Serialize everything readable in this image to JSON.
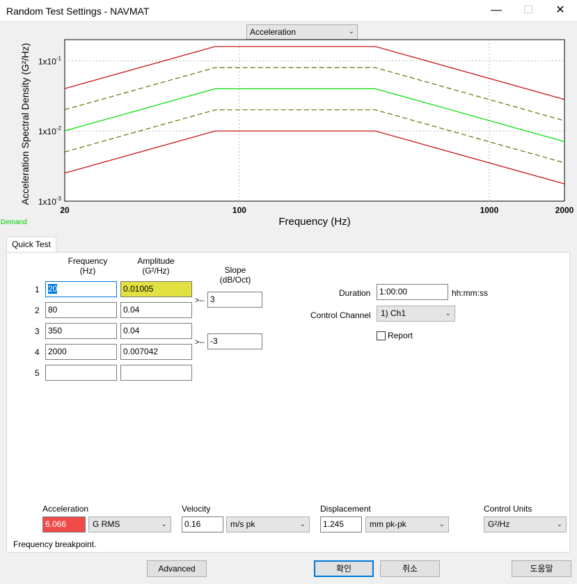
{
  "window": {
    "title": "Random Test Settings - NAVMAT",
    "controls": [
      "minimize",
      "maximize",
      "close"
    ]
  },
  "chart": {
    "view_select": "Acceleration",
    "demand_label": "Demand"
  },
  "chart_data": {
    "type": "line",
    "xlabel": "Frequency (Hz)",
    "ylabel": "Acceleration Spectral Density (G²/Hz)",
    "xscale": "log",
    "yscale": "log",
    "xlim": [
      20,
      2000
    ],
    "ylim": [
      0.001,
      0.2
    ],
    "xticks": [
      20,
      100,
      1000,
      2000
    ],
    "xtick_labels": [
      "20",
      "100",
      "1000",
      "2000"
    ],
    "yticks": [
      0.001,
      0.01,
      0.1
    ],
    "ytick_labels": [
      [
        "1x10",
        "-3"
      ],
      [
        "1x10",
        "-2"
      ],
      [
        "1x10",
        "-1"
      ]
    ],
    "grid": true,
    "series": [
      {
        "style": "solid",
        "color": "#c00000",
        "x": [
          20,
          80,
          350,
          2000
        ],
        "y": [
          0.0402,
          0.16,
          0.16,
          0.0281
        ]
      },
      {
        "style": "dashed",
        "color": "#6b6b00",
        "x": [
          20,
          80,
          350,
          2000
        ],
        "y": [
          0.0201,
          0.08,
          0.08,
          0.014
        ]
      },
      {
        "style": "solid",
        "color": "#00dd00",
        "x": [
          20,
          80,
          350,
          2000
        ],
        "y": [
          0.01005,
          0.04,
          0.04,
          0.007042
        ]
      },
      {
        "style": "dashed",
        "color": "#6b6b00",
        "x": [
          20,
          80,
          350,
          2000
        ],
        "y": [
          0.00503,
          0.02,
          0.02,
          0.00352
        ]
      },
      {
        "style": "solid",
        "color": "#c00000",
        "x": [
          20,
          80,
          350,
          2000
        ],
        "y": [
          0.00251,
          0.01,
          0.01,
          0.00176
        ]
      }
    ]
  },
  "tabs": [
    "Quick Test"
  ],
  "table": {
    "header_freq": [
      "Frequency",
      "(Hz)"
    ],
    "header_amp": [
      "Amplitude",
      "(G²/Hz)"
    ],
    "header_slope": [
      "Slope",
      "(dB/Oct)"
    ],
    "rows": [
      {
        "num": "1",
        "freq": "20",
        "amp": "0.01005"
      },
      {
        "num": "2",
        "freq": "80",
        "amp": "0.04"
      },
      {
        "num": "3",
        "freq": "350",
        "amp": "0.04"
      },
      {
        "num": "4",
        "freq": "2000",
        "amp": "0.007042"
      },
      {
        "num": "5",
        "freq": "",
        "amp": ""
      }
    ],
    "slopes": [
      {
        "arrow": ">--",
        "value": "3"
      },
      {
        "arrow": ">--",
        "value": "-3"
      }
    ]
  },
  "settings": {
    "duration_label": "Duration",
    "duration_value": "1:00:00",
    "duration_unit": "hh:mm:ss",
    "control_channel_label": "Control Channel",
    "control_channel_value": "1) Ch1",
    "report_label": "Report",
    "report_checked": false
  },
  "bottom": {
    "acceleration_label": "Acceleration",
    "acceleration_value": "6.066",
    "acceleration_unit": "G RMS",
    "velocity_label": "Velocity",
    "velocity_value": "0.16",
    "velocity_unit": "m/s pk",
    "displacement_label": "Displacement",
    "displacement_value": "1.245",
    "displacement_unit": "mm pk-pk",
    "control_units_label": "Control Units",
    "control_units_value": "G²/Hz"
  },
  "status_text": "Frequency breakpoint.",
  "buttons": {
    "advanced": "Advanced",
    "ok": "확인",
    "cancel": "취소",
    "help": "도움말"
  },
  "colors": {
    "error_field": "#f04a4a",
    "highlight_field": "#e1e141",
    "focus": "#0078d7"
  }
}
